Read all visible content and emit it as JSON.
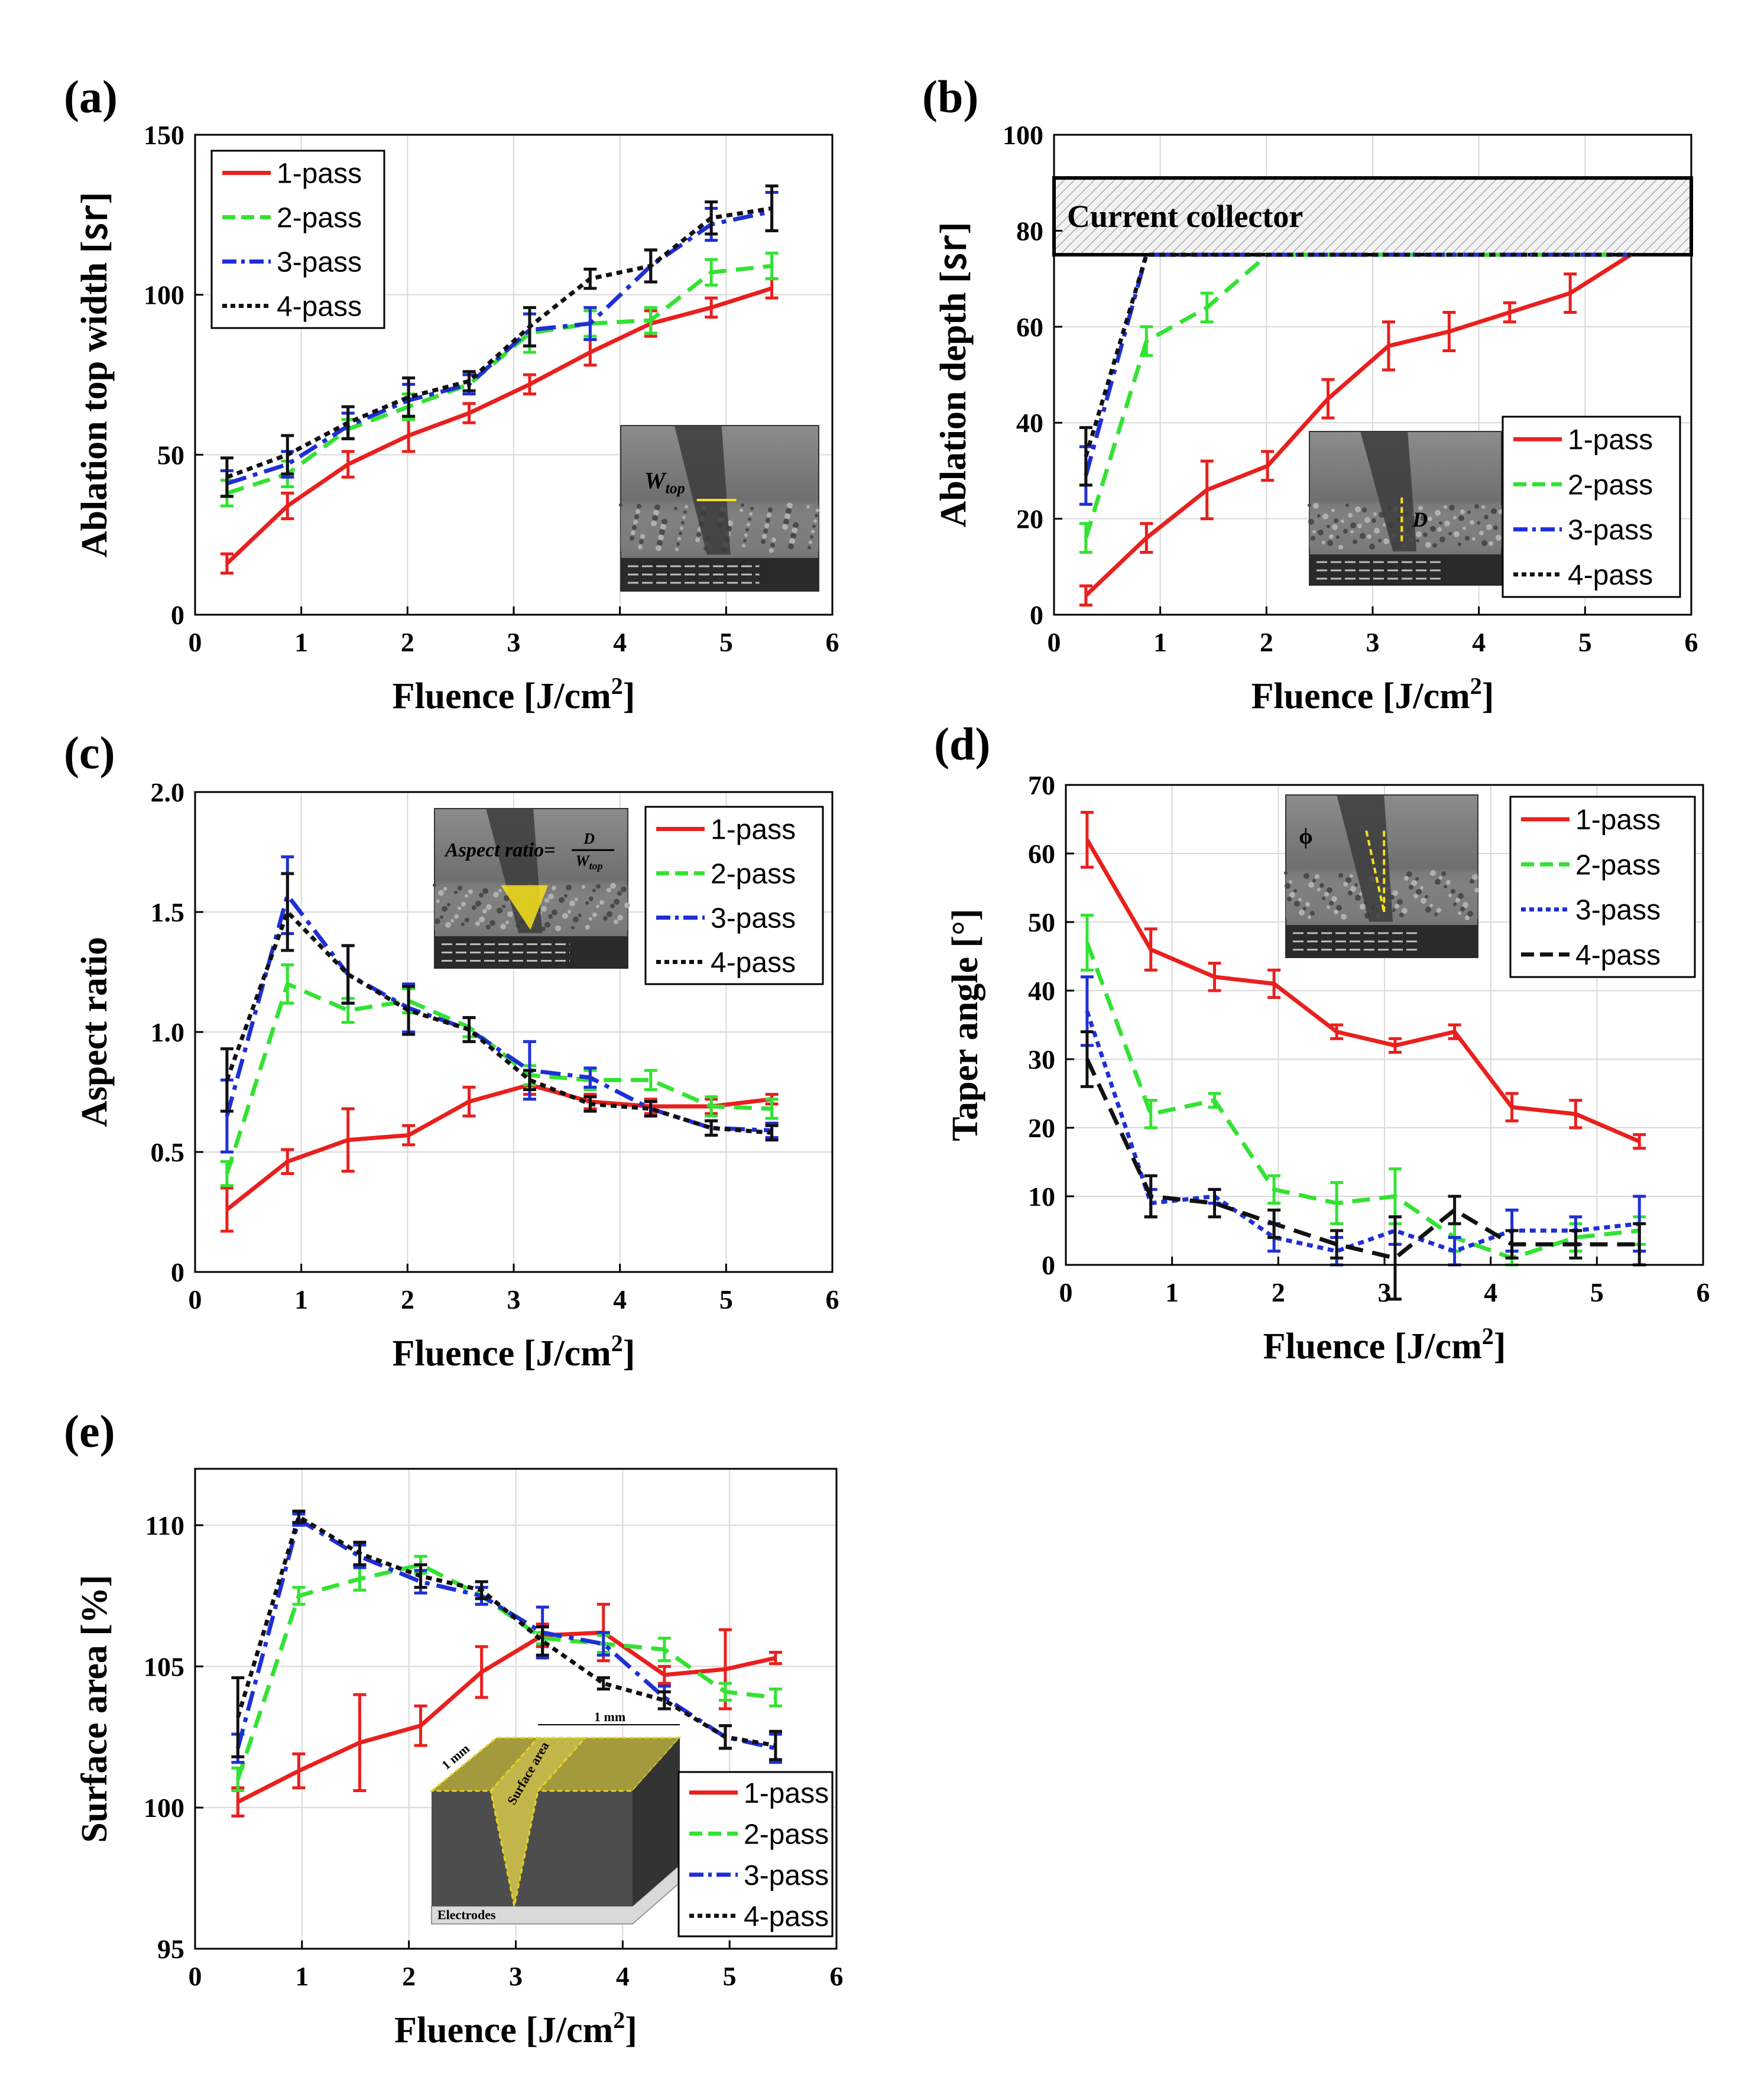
{
  "colors": {
    "p1": "#e8201e",
    "p2": "#33e233",
    "p3": "#1f2fd6",
    "p4": "#111111"
  },
  "figure": {
    "x_title_main": "Fluence [J/cm",
    "x_title_sup": "2",
    "x_title_end": "]"
  },
  "chart_data": [
    {
      "id": "a",
      "type": "line",
      "panel_label": "(a)",
      "ylabel": "Ablation top width [㏛]",
      "xlim": [
        0,
        6
      ],
      "ylim": [
        0,
        150
      ],
      "xticks": [
        "0",
        "1",
        "2",
        "3",
        "4",
        "5",
        "6"
      ],
      "yticks": [
        "0",
        "50",
        "100",
        "150"
      ],
      "legend_position": "top-left",
      "inset": {
        "kind": "sem",
        "label_main": "W",
        "label_sub": "top"
      },
      "series": [
        {
          "name": "1-pass",
          "color_key": "p1",
          "dash": "solid",
          "x": [
            0.3,
            0.87,
            1.44,
            2.01,
            2.58,
            3.15,
            3.72,
            4.29,
            4.86,
            5.43
          ],
          "y": [
            16,
            34,
            47,
            56,
            63,
            72,
            82,
            91,
            96,
            102
          ],
          "err": [
            3,
            4,
            4,
            5,
            3,
            3,
            4,
            4,
            3,
            3
          ]
        },
        {
          "name": "2-pass",
          "color_key": "p2",
          "dash": "dash",
          "x": [
            0.3,
            0.87,
            1.44,
            2.01,
            2.58,
            3.15,
            3.72,
            4.29,
            4.86,
            5.43
          ],
          "y": [
            38,
            44,
            58,
            65,
            72,
            88,
            91,
            92,
            107,
            109
          ],
          "err": [
            4,
            4,
            3,
            4,
            3,
            6,
            4,
            4,
            4,
            4
          ]
        },
        {
          "name": "3-pass",
          "color_key": "p3",
          "dash": "dashdot",
          "x": [
            0.3,
            0.87,
            1.44,
            2.01,
            2.58,
            3.15,
            3.72,
            4.29,
            4.86,
            5.43
          ],
          "y": [
            41,
            47,
            59,
            67,
            72,
            89,
            91,
            109,
            122,
            126
          ],
          "err": [
            4,
            4,
            4,
            5,
            3,
            5,
            5,
            5,
            5,
            6
          ]
        },
        {
          "name": "4-pass",
          "color_key": "p4",
          "dash": "dot",
          "x": [
            0.3,
            0.87,
            1.44,
            2.01,
            2.58,
            3.15,
            3.72,
            4.29,
            4.86,
            5.43
          ],
          "y": [
            43,
            50,
            60,
            68,
            73,
            90,
            105,
            109,
            124,
            127
          ],
          "err": [
            6,
            6,
            5,
            6,
            3,
            6,
            3,
            5,
            5,
            7
          ]
        }
      ]
    },
    {
      "id": "b",
      "type": "line",
      "panel_label": "(b)",
      "ylabel": "Ablation depth [㏛]",
      "xlim": [
        0,
        6
      ],
      "ylim": [
        0,
        100
      ],
      "xticks": [
        "0",
        "1",
        "2",
        "3",
        "4",
        "5",
        "6"
      ],
      "yticks": [
        "0",
        "20",
        "40",
        "60",
        "80",
        "100"
      ],
      "legend_position": "bottom-right",
      "band": {
        "label": "Current collector",
        "y_from": 75,
        "y_to": 91
      },
      "inset": {
        "kind": "sem",
        "label_main": "D",
        "label_sub": ""
      },
      "series": [
        {
          "name": "1-pass",
          "color_key": "p1",
          "dash": "solid",
          "x": [
            0.3,
            0.87,
            1.44,
            2.01,
            2.58,
            3.15,
            3.72,
            4.29,
            4.86,
            5.43
          ],
          "y": [
            4,
            16,
            26,
            31,
            45,
            56,
            59,
            63,
            67,
            75
          ],
          "err": [
            2,
            3,
            6,
            3,
            4,
            5,
            4,
            2,
            4,
            0
          ]
        },
        {
          "name": "2-pass",
          "color_key": "p2",
          "dash": "dash",
          "x": [
            0.3,
            0.87,
            1.44,
            2.01,
            5.43
          ],
          "y": [
            16,
            57,
            64,
            75,
            75
          ],
          "err": [
            3,
            3,
            3,
            0,
            0
          ]
        },
        {
          "name": "3-pass",
          "color_key": "p3",
          "dash": "dashdot",
          "x": [
            0.3,
            0.87,
            5.43
          ],
          "y": [
            29,
            75,
            75
          ],
          "err": [
            6,
            0,
            0
          ]
        },
        {
          "name": "4-pass",
          "color_key": "p4",
          "dash": "dot",
          "x": [
            0.3,
            0.87,
            5.43
          ],
          "y": [
            33,
            75,
            75
          ],
          "err": [
            6,
            0,
            0
          ]
        }
      ]
    },
    {
      "id": "c",
      "type": "line",
      "panel_label": "(c)",
      "ylabel": "Aspect ratio",
      "xlim": [
        0,
        6
      ],
      "ylim": [
        0,
        2
      ],
      "xticks": [
        "0",
        "1",
        "2",
        "3",
        "4",
        "5",
        "6"
      ],
      "yticks": [
        "0",
        "0.5",
        "1.0",
        "1.5",
        "2.0"
      ],
      "legend_position": "top-right",
      "inset": {
        "kind": "sem",
        "label_main": "Aspect ratio=",
        "label_frac_num": "D",
        "label_frac_den": "W",
        "label_sub": "top"
      },
      "series": [
        {
          "name": "1-pass",
          "color_key": "p1",
          "dash": "solid",
          "x": [
            0.3,
            0.87,
            1.44,
            2.01,
            2.58,
            3.15,
            3.72,
            4.29,
            4.86,
            5.43
          ],
          "y": [
            0.26,
            0.46,
            0.55,
            0.57,
            0.71,
            0.78,
            0.71,
            0.69,
            0.69,
            0.72
          ],
          "err": [
            0.09,
            0.05,
            0.13,
            0.04,
            0.06,
            0.04,
            0.03,
            0.03,
            0.03,
            0.02
          ]
        },
        {
          "name": "2-pass",
          "color_key": "p2",
          "dash": "dash",
          "x": [
            0.3,
            0.87,
            1.44,
            2.01,
            2.58,
            3.15,
            3.72,
            4.29,
            4.86,
            5.43
          ],
          "y": [
            0.41,
            1.2,
            1.09,
            1.13,
            1.02,
            0.82,
            0.8,
            0.8,
            0.69,
            0.68
          ],
          "err": [
            0.05,
            0.08,
            0.05,
            0.05,
            0.04,
            0.04,
            0.04,
            0.04,
            0.04,
            0.04
          ]
        },
        {
          "name": "3-pass",
          "color_key": "p3",
          "dash": "dashdot",
          "x": [
            0.3,
            0.87,
            1.44,
            2.01,
            2.58,
            3.15,
            3.72,
            4.29,
            4.86,
            5.43
          ],
          "y": [
            0.65,
            1.57,
            1.24,
            1.1,
            1.01,
            0.84,
            0.81,
            0.68,
            0.6,
            0.59
          ],
          "err": [
            0.15,
            0.16,
            0.12,
            0.1,
            0.05,
            0.12,
            0.04,
            0.03,
            0.03,
            0.03
          ]
        },
        {
          "name": "4-pass",
          "color_key": "p4",
          "dash": "dot",
          "x": [
            0.3,
            0.87,
            1.44,
            2.01,
            2.58,
            3.15,
            3.72,
            4.29,
            4.86,
            5.43
          ],
          "y": [
            0.8,
            1.5,
            1.24,
            1.09,
            1.01,
            0.8,
            0.7,
            0.68,
            0.6,
            0.58
          ],
          "err": [
            0.13,
            0.16,
            0.12,
            0.1,
            0.05,
            0.04,
            0.03,
            0.03,
            0.03,
            0.03
          ]
        }
      ]
    },
    {
      "id": "d",
      "type": "line",
      "panel_label": "(d)",
      "ylabel": "Taper angle  [°]",
      "xlim": [
        0,
        6
      ],
      "ylim": [
        0,
        70
      ],
      "xticks": [
        "0",
        "1",
        "2",
        "3",
        "4",
        "5",
        "6"
      ],
      "yticks": [
        "0",
        "10",
        "20",
        "30",
        "40",
        "50",
        "60",
        "70"
      ],
      "legend_position": "top-right",
      "inset": {
        "kind": "sem",
        "label_main": "ϕ",
        "label_sub": ""
      },
      "series": [
        {
          "name": "1-pass",
          "color_key": "p1",
          "dash": "solid",
          "x": [
            0.2,
            0.8,
            1.4,
            1.96,
            2.55,
            3.1,
            3.66,
            4.2,
            4.8,
            5.4
          ],
          "y": [
            62,
            46,
            42,
            41,
            34,
            32,
            34,
            23,
            22,
            18
          ],
          "err": [
            4,
            3,
            2,
            2,
            1,
            1,
            1,
            2,
            2,
            1
          ]
        },
        {
          "name": "2-pass",
          "color_key": "p2",
          "dash": "dash",
          "x": [
            0.2,
            0.8,
            1.4,
            1.96,
            2.55,
            3.1,
            3.66,
            4.2,
            4.8,
            5.4
          ],
          "y": [
            47,
            22,
            24,
            11,
            9,
            10,
            4,
            1,
            4,
            5
          ],
          "err": [
            4,
            2,
            1,
            2,
            3,
            4,
            2,
            1,
            2,
            2
          ]
        },
        {
          "name": "3-pass",
          "color_key": "p3",
          "dash": "dot",
          "x": [
            0.2,
            0.8,
            1.4,
            1.96,
            2.55,
            3.1,
            3.66,
            4.2,
            4.8,
            5.4
          ],
          "y": [
            37,
            9,
            10,
            4,
            2,
            5,
            2,
            5,
            5,
            6
          ],
          "err": [
            5,
            2,
            1,
            2,
            2,
            2,
            2,
            3,
            2,
            4
          ]
        },
        {
          "name": "4-pass",
          "color_key": "p4",
          "dash": "dash",
          "x": [
            0.2,
            0.8,
            1.4,
            1.96,
            2.55,
            3.1,
            3.66,
            4.2,
            4.8,
            5.4
          ],
          "y": [
            30,
            10,
            9,
            6,
            3,
            1,
            8,
            3,
            3,
            3
          ],
          "err": [
            4,
            3,
            2,
            2,
            2,
            6,
            2,
            2,
            2,
            3
          ]
        }
      ]
    },
    {
      "id": "e",
      "type": "line",
      "panel_label": "(e)",
      "ylabel": "Surface area [%]",
      "xlim": [
        0,
        6
      ],
      "ylim": [
        95,
        112
      ],
      "xticks": [
        "0",
        "1",
        "2",
        "3",
        "4",
        "5",
        "6"
      ],
      "yticks": [
        "95",
        "100",
        "105",
        "110"
      ],
      "legend_position": "bottom-right",
      "inset": {
        "kind": "schematic",
        "label_top": "1 mm",
        "label_left": "1 mm",
        "label_area": "Surface area",
        "label_base": "Electrodes"
      },
      "series": [
        {
          "name": "1-pass",
          "color_key": "p1",
          "dash": "solid",
          "x": [
            0.4,
            0.97,
            1.54,
            2.11,
            2.68,
            3.25,
            3.82,
            4.39,
            4.96,
            5.43
          ],
          "y": [
            100.2,
            101.3,
            102.3,
            102.9,
            104.8,
            106.1,
            106.2,
            104.7,
            104.9,
            105.3
          ],
          "err": [
            0.5,
            0.6,
            1.7,
            0.7,
            0.9,
            0.4,
            1.0,
            0.3,
            1.4,
            0.2
          ]
        },
        {
          "name": "2-pass",
          "color_key": "p2",
          "dash": "dash",
          "x": [
            0.4,
            0.97,
            1.54,
            2.11,
            2.68,
            3.25,
            3.82,
            4.39,
            4.96,
            5.43
          ],
          "y": [
            101.0,
            107.5,
            108.1,
            108.6,
            107.5,
            106.0,
            105.8,
            105.6,
            104.1,
            103.9
          ],
          "err": [
            0.4,
            0.3,
            0.4,
            0.3,
            0.3,
            0.2,
            0.3,
            0.4,
            0.3,
            0.3
          ]
        },
        {
          "name": "3-pass",
          "color_key": "p3",
          "dash": "dashdot",
          "x": [
            0.4,
            0.97,
            1.54,
            2.11,
            2.68,
            3.25,
            3.82,
            4.39,
            4.96,
            5.43
          ],
          "y": [
            102.1,
            110.2,
            108.9,
            108.0,
            107.5,
            106.2,
            105.8,
            103.9,
            102.5,
            102.1
          ],
          "err": [
            0.5,
            0.2,
            0.4,
            0.4,
            0.3,
            0.9,
            0.4,
            0.4,
            0.4,
            0.5
          ]
        },
        {
          "name": "4-pass",
          "color_key": "p4",
          "dash": "dot",
          "x": [
            0.4,
            0.97,
            1.54,
            2.11,
            2.68,
            3.25,
            3.82,
            4.39,
            4.96,
            5.43
          ],
          "y": [
            103.2,
            110.3,
            109.0,
            108.2,
            107.7,
            105.9,
            104.4,
            103.8,
            102.5,
            102.2
          ],
          "err": [
            1.4,
            0.2,
            0.4,
            0.4,
            0.3,
            0.5,
            0.2,
            0.3,
            0.4,
            0.5
          ]
        }
      ]
    }
  ]
}
